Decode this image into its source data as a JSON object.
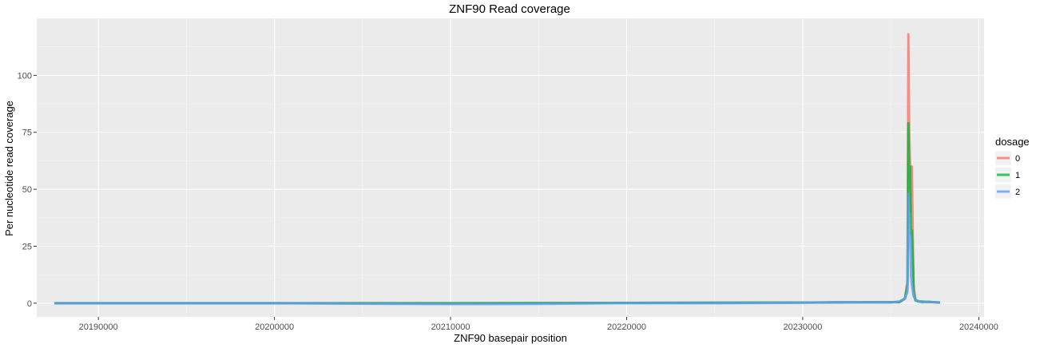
{
  "chart_data": {
    "type": "line",
    "title": "ZNF90 Read coverage",
    "xlabel": "ZNF90 basepair position",
    "ylabel": "Per nucleotide read coverage",
    "xlim": [
      20186500,
      20240300
    ],
    "ylim": [
      -6,
      125
    ],
    "xticks": [
      20190000,
      20200000,
      20210000,
      20220000,
      20230000,
      20240000
    ],
    "xtick_labels": [
      "20190000",
      "20200000",
      "20210000",
      "20220000",
      "20230000",
      "20240000"
    ],
    "yticks": [
      0,
      25,
      50,
      75,
      100
    ],
    "ytick_labels": [
      "0",
      "25",
      "50",
      "75",
      "100"
    ],
    "grid": true,
    "legend": {
      "title": "dosage",
      "position": "right"
    },
    "series": [
      {
        "name": "0",
        "color": "#F8766D",
        "x": [
          20187500,
          20210000,
          20230000,
          20235500,
          20235800,
          20235950,
          20236000,
          20236050,
          20236100,
          20236150,
          20236200,
          20236250,
          20236300,
          20236400,
          20236600,
          20237000,
          20237800
        ],
        "y": [
          0,
          0,
          0.3,
          0.5,
          2,
          10,
          118,
          75,
          60,
          40,
          60,
          30,
          8,
          1.5,
          0.8,
          0.6,
          0.3
        ]
      },
      {
        "name": "1",
        "color": "#00BA38",
        "x": [
          20187500,
          20210000,
          20230000,
          20235500,
          20235800,
          20235950,
          20236000,
          20236050,
          20236100,
          20236150,
          20236200,
          20236250,
          20236300,
          20236400,
          20236600,
          20237000,
          20237800
        ],
        "y": [
          0,
          0,
          0.3,
          0.5,
          2,
          8,
          79,
          55,
          60,
          30,
          32,
          20,
          5,
          1.2,
          0.8,
          0.6,
          0.3
        ]
      },
      {
        "name": "2",
        "color": "#619CFF",
        "x": [
          20187500,
          20195000,
          20200000,
          20205000,
          20210000,
          20215000,
          20220000,
          20225000,
          20230000,
          20232000,
          20235000,
          20235500,
          20235800,
          20235950,
          20236000,
          20236050,
          20236100,
          20236150,
          20236200,
          20236300,
          20236500,
          20236800,
          20237200,
          20237600,
          20237800
        ],
        "y": [
          0,
          0,
          0,
          -0.2,
          -0.4,
          -0.3,
          0,
          0,
          0.2,
          0.5,
          0.3,
          0.8,
          2,
          5,
          48,
          25,
          30,
          12,
          8,
          3,
          0.8,
          0.4,
          0.6,
          0.4,
          0.2
        ]
      }
    ]
  }
}
